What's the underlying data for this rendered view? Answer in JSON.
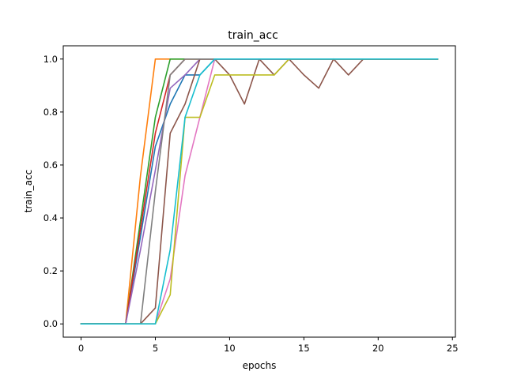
{
  "chart_data": {
    "type": "line",
    "title": "train_acc",
    "xlabel": "epochs",
    "ylabel": "train_acc",
    "xlim": [
      -1.2,
      25.2
    ],
    "ylim": [
      -0.05,
      1.05
    ],
    "xticks": [
      0,
      5,
      10,
      15,
      20,
      25
    ],
    "yticks": [
      0.0,
      0.2,
      0.4,
      0.6,
      0.8,
      1.0
    ],
    "xtick_labels": [
      "0",
      "5",
      "10",
      "15",
      "20",
      "25"
    ],
    "ytick_labels": [
      "0.0",
      "0.2",
      "0.4",
      "0.6",
      "0.8",
      "1.0"
    ],
    "grid": false,
    "x": [
      0,
      1,
      2,
      3,
      4,
      5,
      6,
      7,
      8,
      9,
      10,
      11,
      12,
      13,
      14,
      15,
      16,
      17,
      18,
      19,
      20,
      21,
      22,
      23,
      24
    ],
    "series": [
      {
        "color": "#1f77b4",
        "values": [
          0,
          0,
          0,
          0,
          0.33,
          0.67,
          0.83,
          0.94,
          0.94,
          1,
          1,
          1,
          1,
          1,
          1,
          1,
          1,
          1,
          1,
          1,
          1,
          1,
          1,
          1,
          1
        ]
      },
      {
        "color": "#ff7f0e",
        "values": [
          0,
          0,
          0,
          0,
          0.56,
          1,
          1,
          1,
          1,
          1,
          1,
          1,
          1,
          1,
          1,
          1,
          1,
          1,
          1,
          1,
          1,
          1,
          1,
          1,
          1
        ]
      },
      {
        "color": "#2ca02c",
        "values": [
          0,
          0,
          0,
          0,
          0.39,
          0.78,
          1,
          1,
          1,
          1,
          1,
          1,
          1,
          1,
          1,
          1,
          1,
          1,
          1,
          1,
          1,
          1,
          1,
          1,
          1
        ]
      },
      {
        "color": "#d62728",
        "values": [
          0,
          0,
          0,
          0,
          0.36,
          0.72,
          0.94,
          1,
          1,
          1,
          1,
          1,
          1,
          1,
          1,
          1,
          1,
          1,
          1,
          1,
          1,
          1,
          1,
          1,
          1
        ]
      },
      {
        "color": "#9467bd",
        "values": [
          0,
          0,
          0,
          0,
          0.28,
          0.58,
          0.89,
          0.94,
          1,
          1,
          1,
          1,
          1,
          1,
          1,
          1,
          1,
          1,
          1,
          1,
          1,
          1,
          1,
          1,
          1
        ]
      },
      {
        "color": "#8c564b",
        "values": [
          0,
          0,
          0,
          0,
          0,
          0.06,
          0.72,
          0.83,
          1,
          1,
          0.94,
          0.83,
          1,
          0.94,
          1,
          0.94,
          0.89,
          1,
          0.94,
          1,
          1,
          1,
          1,
          1,
          1
        ]
      },
      {
        "color": "#e377c2",
        "values": [
          0,
          0,
          0,
          0,
          0,
          0,
          0.17,
          0.56,
          0.78,
          1,
          1,
          1,
          1,
          1,
          1,
          1,
          1,
          1,
          1,
          1,
          1,
          1,
          1,
          1,
          1
        ]
      },
      {
        "color": "#7f7f7f",
        "values": [
          0,
          0,
          0,
          0,
          0,
          0.5,
          0.94,
          1,
          1,
          1,
          1,
          1,
          1,
          1,
          1,
          1,
          1,
          1,
          1,
          1,
          1,
          1,
          1,
          1,
          1
        ]
      },
      {
        "color": "#bcbd22",
        "values": [
          0,
          0,
          0,
          0,
          0,
          0,
          0.11,
          0.78,
          0.78,
          0.94,
          0.94,
          0.94,
          0.94,
          0.94,
          1,
          1,
          1,
          1,
          1,
          1,
          1,
          1,
          1,
          1,
          1
        ]
      },
      {
        "color": "#17becf",
        "values": [
          0,
          0,
          0,
          0,
          0,
          0,
          0.28,
          0.78,
          0.94,
          1,
          1,
          1,
          1,
          1,
          1,
          1,
          1,
          1,
          1,
          1,
          1,
          1,
          1,
          1,
          1
        ]
      }
    ]
  }
}
